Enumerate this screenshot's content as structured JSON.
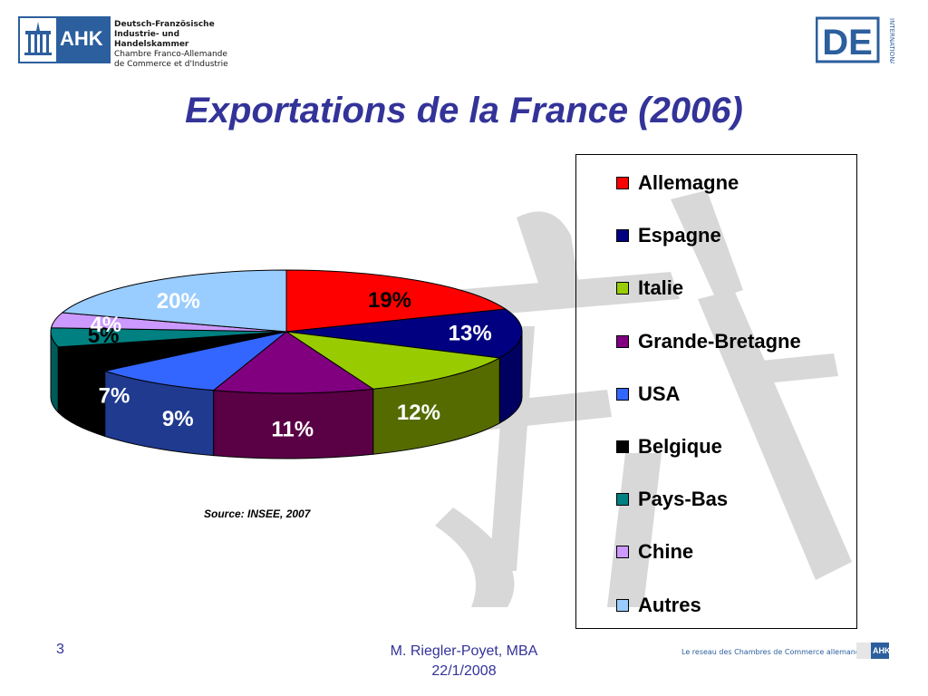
{
  "header": {
    "ahk_logo": {
      "emblem_text": "AHK",
      "lines": [
        "Deutsch-Französische",
        "Industrie- und Handelskammer",
        "Chambre Franco-Allemande",
        "de Commerce et d'Industrie"
      ]
    },
    "de_logo": {
      "text": "DE",
      "side_text": "INTERNATIONAL"
    }
  },
  "slide": {
    "title": "Exportations de la France (2006)"
  },
  "chart_data": {
    "type": "pie",
    "title": "",
    "style": "3d-exploded",
    "legend_position": "right",
    "slices": [
      {
        "label": "Allemagne",
        "value": 19,
        "display": "19%",
        "color": "#ff0000",
        "side_color": "#c00000",
        "text_color": "#000000"
      },
      {
        "label": "Espagne",
        "value": 13,
        "display": "13%",
        "color": "#000080",
        "side_color": "#000060",
        "text_color": "#ffffff"
      },
      {
        "label": "Italie",
        "value": 12,
        "display": "12%",
        "color": "#99cc00",
        "side_color": "#556b00",
        "text_color": "#ffffff"
      },
      {
        "label": "Grande-Bretagne",
        "value": 11,
        "display": "11%",
        "color": "#800080",
        "side_color": "#5a0045",
        "text_color": "#ffffff"
      },
      {
        "label": "USA",
        "value": 9,
        "display": "9%",
        "color": "#3366ff",
        "side_color": "#1f3a8f",
        "text_color": "#ffffff"
      },
      {
        "label": "Belgique",
        "value": 7,
        "display": "7%",
        "color": "#000000",
        "side_color": "#000000",
        "text_color": "#ffffff"
      },
      {
        "label": "Pays-Bas",
        "value": 5,
        "display": "5%",
        "color": "#008080",
        "side_color": "#005a5a",
        "text_color": "#000000"
      },
      {
        "label": "Chine",
        "value": 4,
        "display": "4%",
        "color": "#cc99ff",
        "side_color": "#9a6ecc",
        "text_color": "#ffffff"
      },
      {
        "label": "Autres",
        "value": 20,
        "display": "20%",
        "color": "#99ccff",
        "side_color": "#6f9ccc",
        "text_color": "#ffffff"
      }
    ]
  },
  "source_note": "Source: INSEE, 2007",
  "footer": {
    "page_number": "3",
    "author_line1": "M. Riegler-Poyet, MBA",
    "author_line2": "22/1/2008",
    "tagline": "Le reseau des Chambres de Commerce allemandes",
    "badge_text": "AHK"
  }
}
